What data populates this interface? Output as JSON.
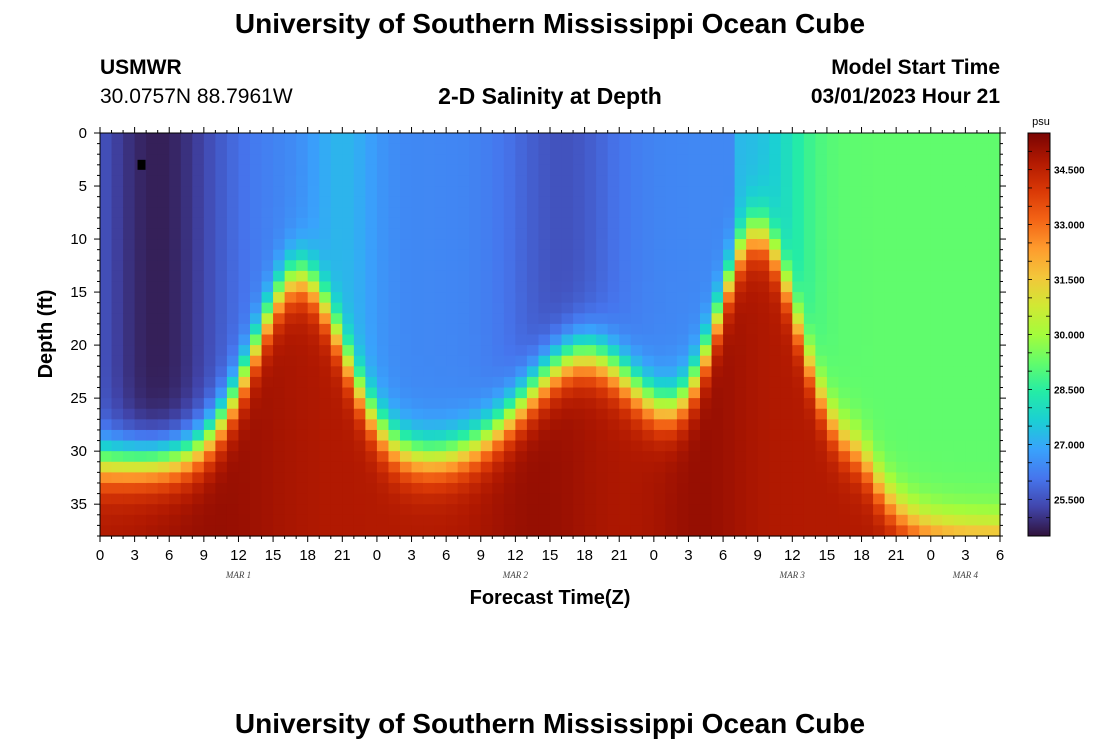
{
  "page": {
    "title": "University of Southern Mississippi Ocean Cube",
    "footer_title": "University of Southern Mississippi Ocean Cube",
    "station_name": "USMWR",
    "station_coords": "30.0757N  88.7961W",
    "plot_title": "2-D Salinity at Depth",
    "model_start_label": "Model Start Time",
    "model_start_value": "03/01/2023 Hour 21"
  },
  "chart_data": {
    "type": "heatmap",
    "title": "2-D Salinity at Depth",
    "xlabel": "Forecast Time(Z)",
    "ylabel": "Depth (ft)",
    "x_tick_labels": [
      "0",
      "3",
      "6",
      "9",
      "12",
      "15",
      "18",
      "21",
      "0",
      "3",
      "6",
      "9",
      "12",
      "15",
      "18",
      "21",
      "0",
      "3",
      "6",
      "9",
      "12",
      "15",
      "18",
      "21",
      "0",
      "3",
      "6"
    ],
    "x_range_hours": [
      0,
      78
    ],
    "day_labels": [
      {
        "label": "MAR 1",
        "hour": 12
      },
      {
        "label": "MAR 2",
        "hour": 36
      },
      {
        "label": "MAR 3",
        "hour": 60
      },
      {
        "label": "MAR 4",
        "hour": 75
      }
    ],
    "y_tick_labels": [
      "0",
      "5",
      "10",
      "15",
      "20",
      "25",
      "30",
      "35"
    ],
    "y_ticks": [
      0,
      5,
      10,
      15,
      20,
      25,
      30,
      35
    ],
    "ylim": [
      0,
      38
    ],
    "y_inverted": true,
    "colorbar": {
      "unit": "psu",
      "range": [
        24.5,
        35.5
      ],
      "tick_labels": [
        "34.500",
        "33.000",
        "31.500",
        "30.000",
        "28.500",
        "27.000",
        "25.500"
      ],
      "tick_values": [
        34.5,
        33.0,
        31.5,
        30.0,
        28.5,
        27.0,
        25.5
      ],
      "colormap": [
        "#30123b",
        "#4145ab",
        "#4675ed",
        "#39a2fc",
        "#1bcfd4",
        "#24eca6",
        "#61fc6c",
        "#a4fc3b",
        "#d1e834",
        "#f3c63a",
        "#fe9b2d",
        "#f36315",
        "#d93806",
        "#b11901",
        "#7a0403"
      ]
    },
    "marker": {
      "hour": 3.6,
      "depth_ft": 3
    },
    "grid": "off"
  }
}
